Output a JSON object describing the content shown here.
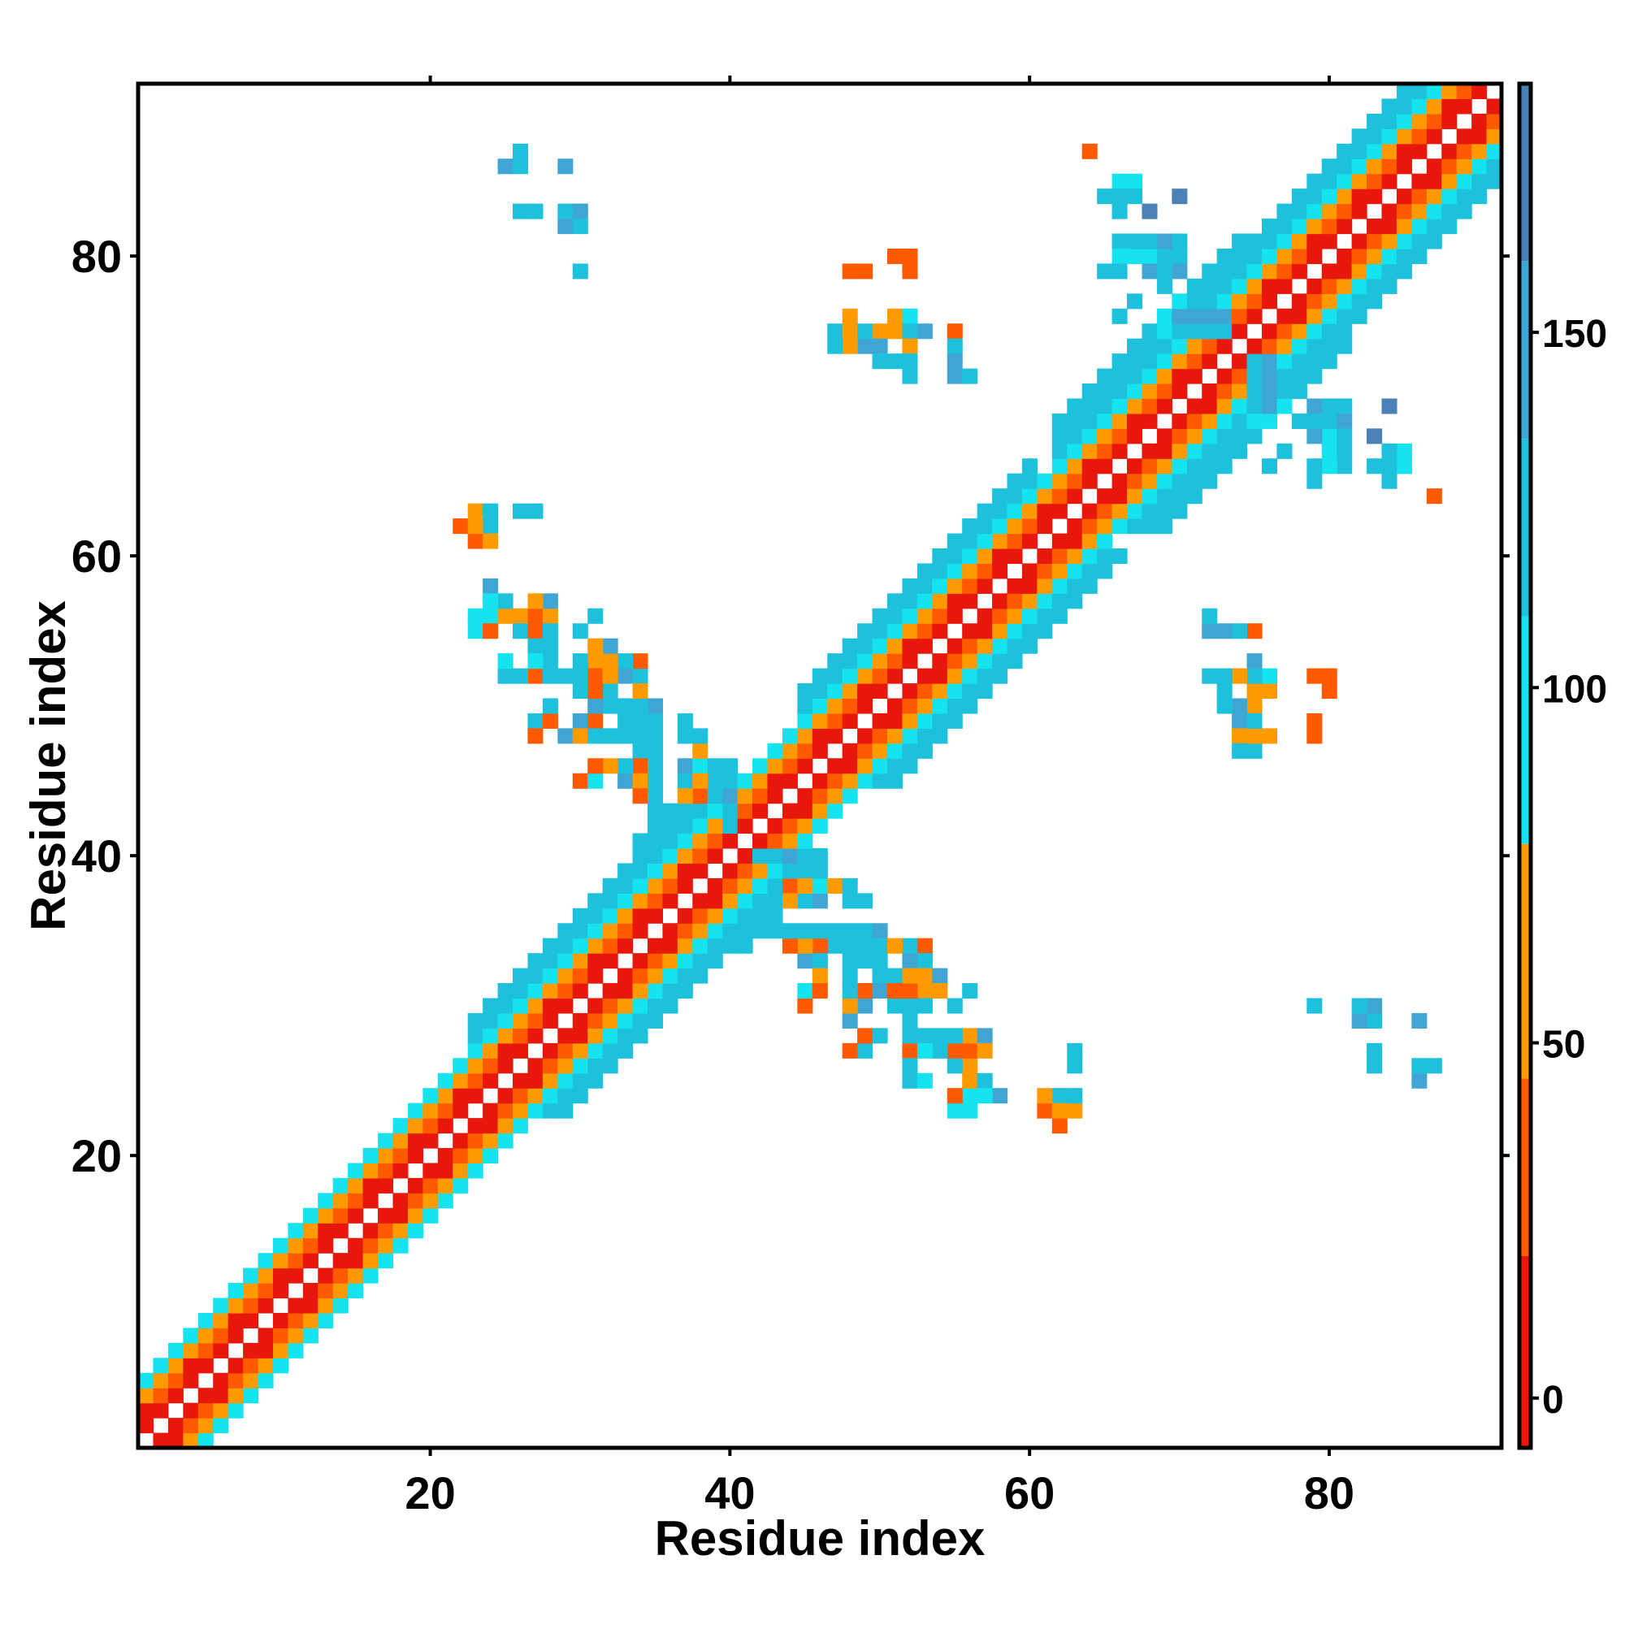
{
  "chart_data": {
    "type": "heatmap",
    "title": "",
    "xlabel": "Residue index",
    "ylabel": "Residue index",
    "x_range": [
      1,
      91
    ],
    "y_range": [
      1,
      91
    ],
    "x_ticks": [
      20,
      40,
      60,
      80
    ],
    "y_ticks": [
      20,
      40,
      60,
      80
    ],
    "colorbar": {
      "ticks": [
        0,
        50,
        100,
        150
      ],
      "range": [
        -7,
        185
      ],
      "bands": [
        {
          "from": -7,
          "to": 20,
          "color": "#e8170c"
        },
        {
          "from": 20,
          "to": 45,
          "color": "#ff5a00"
        },
        {
          "from": 45,
          "to": 78,
          "color": "#ff9a00"
        },
        {
          "from": 78,
          "to": 110,
          "color": "#16e3f0"
        },
        {
          "from": 110,
          "to": 135,
          "color": "#1ec1dc"
        },
        {
          "from": 135,
          "to": 160,
          "color": "#3fa6d4"
        },
        {
          "from": 160,
          "to": 185,
          "color": "#4a82b8"
        }
      ],
      "top_color": "#ffffff"
    },
    "diagonal_band": {
      "description_min_offset": 1,
      "max_offset": 4
    },
    "cell_values_by_offset": {
      "1": 10,
      "2": 35,
      "3": 60,
      "4": 95
    },
    "diagonal_exceptions": {
      "ranges_with_extended_band": [
        {
          "from": 23,
          "to": 40,
          "max_offset": 6
        },
        {
          "from": 45,
          "to": 60,
          "max_offset": 6
        },
        {
          "from": 62,
          "to": 74,
          "max_offset": 7
        },
        {
          "from": 75,
          "to": 91,
          "max_offset": 6
        }
      ]
    },
    "contacts": [
      [
        26,
        87,
        125
      ],
      [
        25,
        86,
        170
      ],
      [
        29,
        86,
        170
      ],
      [
        26,
        83,
        125
      ],
      [
        27,
        83,
        125
      ],
      [
        29,
        83,
        125
      ],
      [
        30,
        83,
        125
      ],
      [
        29,
        82,
        150
      ],
      [
        30,
        82,
        95
      ],
      [
        30,
        79,
        125
      ],
      [
        23,
        63,
        60
      ],
      [
        22,
        62,
        35
      ],
      [
        24,
        62,
        125
      ],
      [
        26,
        63,
        125
      ],
      [
        23,
        61,
        60
      ],
      [
        24,
        61,
        95
      ],
      [
        24,
        58,
        150
      ],
      [
        23,
        56,
        95
      ],
      [
        24,
        56,
        125
      ],
      [
        26,
        56,
        60
      ],
      [
        27,
        56,
        60
      ],
      [
        28,
        56,
        150
      ],
      [
        23,
        55,
        95
      ],
      [
        24,
        55,
        35
      ],
      [
        26,
        55,
        125
      ],
      [
        27,
        55,
        35
      ],
      [
        30,
        55,
        125
      ],
      [
        27,
        54,
        125
      ],
      [
        31,
        53,
        150
      ],
      [
        30,
        53,
        125
      ],
      [
        27,
        52,
        35
      ],
      [
        29,
        52,
        125
      ],
      [
        30,
        52,
        125
      ],
      [
        31,
        52,
        60
      ],
      [
        33,
        52,
        150
      ],
      [
        34,
        52,
        35
      ],
      [
        25,
        52,
        125
      ],
      [
        26,
        52,
        125
      ],
      [
        30,
        51,
        125
      ],
      [
        32,
        51,
        125
      ],
      [
        33,
        50,
        125
      ],
      [
        27,
        49,
        125
      ],
      [
        30,
        49,
        125
      ],
      [
        31,
        49,
        125
      ],
      [
        33,
        49,
        35
      ],
      [
        34,
        49,
        60
      ],
      [
        35,
        49,
        150
      ],
      [
        27,
        48,
        35
      ],
      [
        29,
        48,
        150
      ],
      [
        30,
        48,
        60
      ],
      [
        31,
        48,
        125
      ],
      [
        32,
        48,
        125
      ],
      [
        33,
        48,
        125
      ],
      [
        34,
        48,
        125
      ],
      [
        35,
        48,
        60
      ],
      [
        37,
        48,
        125
      ],
      [
        34,
        47,
        125
      ],
      [
        34,
        46,
        125
      ],
      [
        37,
        46,
        150
      ],
      [
        38,
        46,
        150
      ],
      [
        30,
        45,
        35
      ],
      [
        31,
        45,
        95
      ],
      [
        33,
        45,
        150
      ],
      [
        34,
        45,
        60
      ],
      [
        37,
        45,
        125
      ],
      [
        39,
        45,
        125
      ],
      [
        34,
        44,
        35
      ],
      [
        35,
        44,
        125
      ],
      [
        37,
        44,
        60
      ],
      [
        38,
        44,
        150
      ],
      [
        36,
        43,
        125
      ],
      [
        35,
        42,
        125
      ],
      [
        34,
        41,
        125
      ],
      [
        51,
        80,
        35
      ],
      [
        48,
        79,
        60
      ],
      [
        49,
        79,
        35
      ],
      [
        52,
        79,
        35
      ],
      [
        48,
        76,
        60
      ],
      [
        51,
        76,
        60
      ],
      [
        52,
        76,
        95
      ],
      [
        47,
        75,
        125
      ],
      [
        48,
        75,
        35
      ],
      [
        50,
        75,
        60
      ],
      [
        51,
        75,
        60
      ],
      [
        52,
        75,
        60
      ],
      [
        53,
        75,
        125
      ],
      [
        55,
        75,
        35
      ],
      [
        50,
        74,
        150
      ],
      [
        52,
        74,
        125
      ],
      [
        55,
        74,
        125
      ],
      [
        51,
        73,
        150
      ],
      [
        52,
        73,
        125
      ],
      [
        55,
        73,
        125
      ],
      [
        52,
        72,
        125
      ],
      [
        55,
        72,
        150
      ],
      [
        56,
        72,
        125
      ],
      [
        64,
        87,
        35
      ],
      [
        66,
        85,
        95
      ],
      [
        67,
        85,
        95
      ],
      [
        67,
        84,
        125
      ],
      [
        70,
        84,
        170
      ],
      [
        66,
        81,
        125
      ],
      [
        70,
        81,
        125
      ],
      [
        66,
        80,
        95
      ],
      [
        67,
        80,
        95
      ],
      [
        68,
        80,
        95
      ],
      [
        69,
        80,
        125
      ],
      [
        70,
        80,
        125
      ],
      [
        69,
        79,
        150
      ],
      [
        70,
        79,
        150
      ],
      [
        67,
        77,
        125
      ],
      [
        70,
        77,
        95
      ],
      [
        69,
        76,
        95
      ],
      [
        70,
        76,
        150
      ],
      [
        71,
        76,
        150
      ],
      [
        72,
        76,
        150
      ],
      [
        73,
        76,
        150
      ],
      [
        69,
        75,
        95
      ],
      [
        71,
        75,
        125
      ],
      [
        72,
        75,
        125
      ],
      [
        73,
        75,
        125
      ],
      [
        78,
        69,
        125
      ],
      [
        79,
        69,
        125
      ],
      [
        80,
        69,
        125
      ],
      [
        81,
        69,
        150
      ],
      [
        79,
        68,
        150
      ],
      [
        80,
        68,
        95
      ],
      [
        81,
        68,
        125
      ],
      [
        83,
        68,
        170
      ],
      [
        81,
        67,
        125
      ],
      [
        79,
        66,
        125
      ],
      [
        81,
        66,
        125
      ],
      [
        83,
        66,
        125
      ],
      [
        84,
        66,
        125
      ],
      [
        76,
        66,
        125
      ],
      [
        79,
        65,
        125
      ],
      [
        84,
        65,
        125
      ],
      [
        87,
        64,
        35
      ],
      [
        72,
        56,
        125
      ],
      [
        72,
        55,
        150
      ],
      [
        73,
        55,
        150
      ],
      [
        74,
        55,
        125
      ],
      [
        75,
        55,
        35
      ],
      [
        75,
        53,
        150
      ],
      [
        72,
        52,
        125
      ],
      [
        73,
        52,
        125
      ],
      [
        74,
        52,
        60
      ],
      [
        75,
        52,
        125
      ],
      [
        79,
        52,
        35
      ],
      [
        80,
        52,
        35
      ],
      [
        73,
        51,
        125
      ],
      [
        75,
        51,
        60
      ],
      [
        73,
        50,
        125
      ],
      [
        74,
        49,
        150
      ],
      [
        75,
        49,
        125
      ],
      [
        79,
        49,
        35
      ],
      [
        74,
        48,
        60
      ],
      [
        75,
        48,
        60
      ],
      [
        76,
        48,
        60
      ],
      [
        79,
        48,
        35
      ],
      [
        74,
        47,
        125
      ],
      [
        42,
        40,
        125
      ],
      [
        43,
        40,
        125
      ],
      [
        44,
        40,
        150
      ],
      [
        45,
        40,
        125
      ],
      [
        46,
        40,
        125
      ],
      [
        46,
        39,
        125
      ],
      [
        44,
        38,
        35
      ],
      [
        45,
        38,
        60
      ],
      [
        46,
        38,
        95
      ],
      [
        47,
        38,
        60
      ],
      [
        48,
        38,
        125
      ],
      [
        49,
        37,
        125
      ],
      [
        43,
        35,
        125
      ],
      [
        44,
        35,
        125
      ],
      [
        45,
        35,
        125
      ],
      [
        46,
        35,
        125
      ],
      [
        47,
        35,
        125
      ],
      [
        48,
        35,
        125
      ],
      [
        49,
        35,
        125
      ],
      [
        50,
        35,
        150
      ],
      [
        46,
        34,
        35
      ],
      [
        47,
        34,
        125
      ],
      [
        48,
        34,
        125
      ],
      [
        49,
        34,
        125
      ],
      [
        50,
        34,
        125
      ],
      [
        51,
        34,
        60
      ],
      [
        52,
        34,
        125
      ],
      [
        53,
        34,
        35
      ],
      [
        46,
        33,
        125
      ],
      [
        49,
        33,
        125
      ],
      [
        53,
        33,
        125
      ],
      [
        46,
        32,
        60
      ],
      [
        48,
        32,
        125
      ],
      [
        50,
        32,
        125
      ],
      [
        52,
        32,
        60
      ],
      [
        53,
        32,
        60
      ],
      [
        54,
        32,
        150
      ],
      [
        46,
        31,
        35
      ],
      [
        49,
        31,
        35
      ],
      [
        50,
        31,
        150
      ],
      [
        51,
        31,
        35
      ],
      [
        52,
        31,
        35
      ],
      [
        53,
        31,
        60
      ],
      [
        54,
        31,
        60
      ],
      [
        56,
        31,
        125
      ],
      [
        49,
        30,
        150
      ],
      [
        53,
        30,
        125
      ],
      [
        49,
        28,
        35
      ],
      [
        50,
        28,
        125
      ],
      [
        52,
        28,
        125
      ],
      [
        53,
        28,
        125
      ],
      [
        54,
        28,
        125
      ],
      [
        55,
        28,
        125
      ],
      [
        56,
        28,
        60
      ],
      [
        57,
        28,
        150
      ],
      [
        53,
        27,
        95
      ],
      [
        56,
        27,
        35
      ],
      [
        57,
        27,
        60
      ],
      [
        63,
        27,
        125
      ],
      [
        53,
        25,
        95
      ],
      [
        56,
        25,
        60
      ],
      [
        57,
        25,
        125
      ],
      [
        58,
        24,
        150
      ],
      [
        56,
        24,
        95
      ],
      [
        57,
        24,
        95
      ],
      [
        61,
        24,
        60
      ],
      [
        62,
        24,
        125
      ],
      [
        63,
        24,
        125
      ],
      [
        61,
        23,
        35
      ],
      [
        62,
        23,
        60
      ],
      [
        63,
        23,
        60
      ],
      [
        62,
        22,
        35
      ],
      [
        79,
        30,
        125
      ],
      [
        82,
        30,
        125
      ],
      [
        83,
        30,
        150
      ],
      [
        82,
        29,
        150
      ],
      [
        83,
        29,
        125
      ],
      [
        86,
        29,
        150
      ],
      [
        83,
        27,
        125
      ],
      [
        83,
        26,
        125
      ],
      [
        86,
        26,
        125
      ],
      [
        87,
        26,
        125
      ],
      [
        86,
        25,
        150
      ]
    ]
  }
}
